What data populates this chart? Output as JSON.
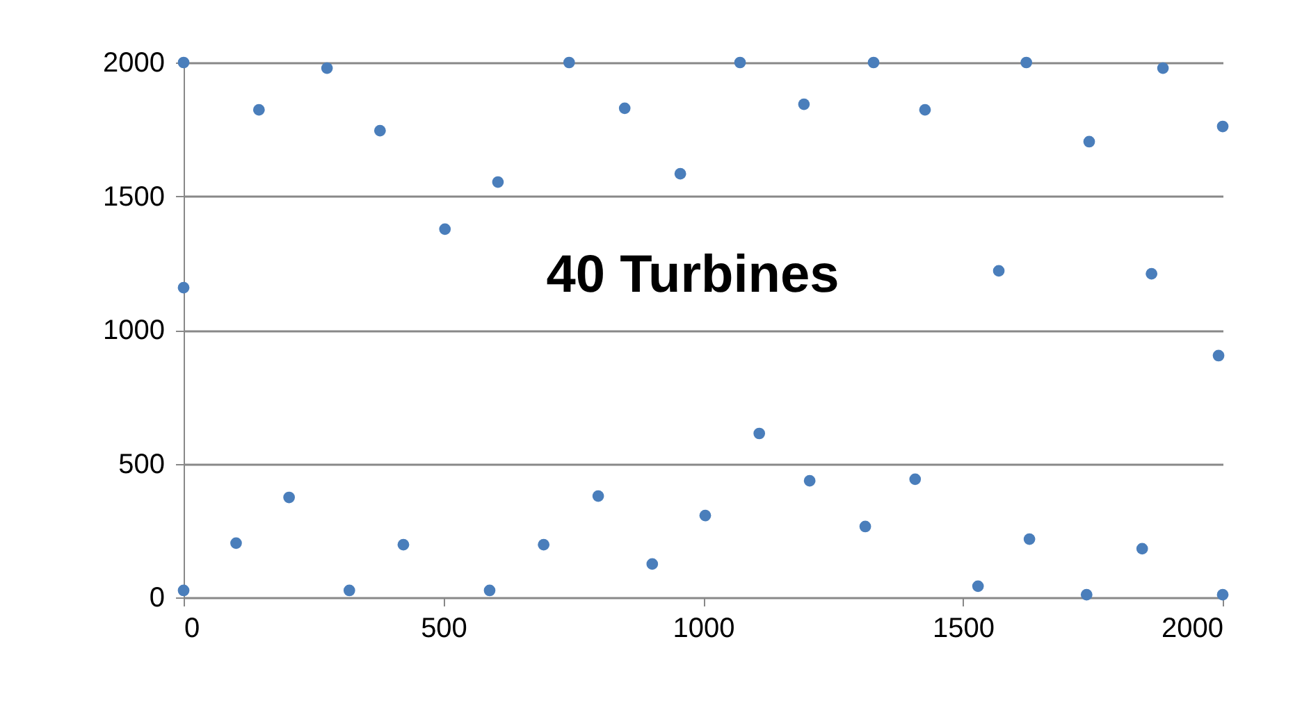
{
  "chart_data": {
    "type": "scatter",
    "x": [
      0,
      0,
      0,
      101,
      145,
      203,
      276,
      319,
      378,
      423,
      503,
      589,
      605,
      693,
      742,
      798,
      849,
      902,
      956,
      1004,
      1071,
      1108,
      1194,
      1205,
      1312,
      1328,
      1408,
      1427,
      1529,
      1569,
      1622,
      1628,
      1743,
      1738,
      1845,
      1863,
      1885,
      2000,
      1992,
      2000
    ],
    "series": [
      {
        "color": "#4a7ebb",
        "values": [
          2000,
          1158,
          26,
          203,
          1823,
          374,
          1979,
          26,
          1745,
          197,
          1377,
          26,
          1553,
          197,
          2000,
          379,
          1829,
          125,
          1584,
          306,
          2000,
          613,
          1844,
          436,
          265,
          2000,
          442,
          1823,
          42,
          1221,
          2000,
          218,
          1704,
          10,
          182,
          1210,
          1979,
          1761,
          904,
          10
        ]
      }
    ],
    "xlim": [
      0,
      2000
    ],
    "xticks": [
      0,
      500,
      1000,
      1500,
      2000
    ],
    "ylim": [
      0,
      2000
    ],
    "yticks": [
      0,
      500,
      1000,
      1500,
      2000
    ],
    "grid": "y",
    "marker": "circle",
    "annotations": [
      "40 Turbines"
    ]
  }
}
